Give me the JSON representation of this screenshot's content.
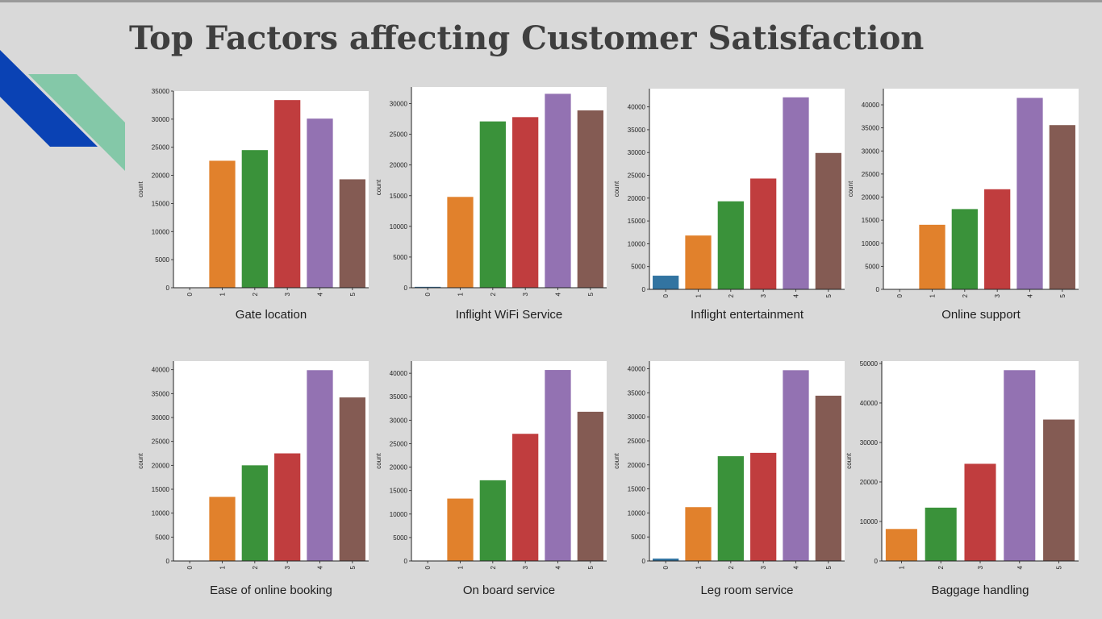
{
  "page": {
    "title": "Top Factors affecting Customer Satisfaction"
  },
  "decor": {
    "stripe_dark": "#0a42b4",
    "stripe_light": "#84c8a8"
  },
  "palette": {
    "0": "#3274a1",
    "1": "#e1812c",
    "2": "#3a923a",
    "3": "#c03d3e",
    "4": "#9372b2",
    "5": "#845b53"
  },
  "chart_data": [
    {
      "type": "bar",
      "title": "Gate location",
      "ylabel": "count",
      "categories": [
        "0",
        "1",
        "2",
        "3",
        "4",
        "5"
      ],
      "values": [
        0,
        22600,
        24500,
        33400,
        30100,
        19300
      ],
      "ylim": [
        0,
        35000
      ],
      "yticks": [
        0,
        5000,
        10000,
        15000,
        20000,
        25000,
        30000,
        35000
      ]
    },
    {
      "type": "bar",
      "title": "Inflight WiFi Service",
      "ylabel": "count",
      "categories": [
        "0",
        "1",
        "2",
        "3",
        "4",
        "5"
      ],
      "values": [
        150,
        14800,
        27100,
        27800,
        31600,
        28900
      ],
      "ylim": [
        0,
        32700
      ],
      "yticks": [
        0,
        5000,
        10000,
        15000,
        20000,
        25000,
        30000
      ]
    },
    {
      "type": "bar",
      "title": "Inflight entertainment",
      "ylabel": "count",
      "categories": [
        "0",
        "1",
        "2",
        "3",
        "4",
        "5"
      ],
      "values": [
        3000,
        11800,
        19300,
        24300,
        42100,
        29900
      ],
      "ylim": [
        0,
        44000
      ],
      "yticks": [
        0,
        5000,
        10000,
        15000,
        20000,
        25000,
        30000,
        35000,
        40000
      ]
    },
    {
      "type": "bar",
      "title": "Online support",
      "ylabel": "count",
      "categories": [
        "0",
        "1",
        "2",
        "3",
        "4",
        "5"
      ],
      "values": [
        0,
        14000,
        17400,
        21700,
        41500,
        35600
      ],
      "ylim": [
        0,
        43500
      ],
      "yticks": [
        0,
        5000,
        10000,
        15000,
        20000,
        25000,
        30000,
        35000,
        40000
      ]
    },
    {
      "type": "bar",
      "title": "Ease of online booking",
      "ylabel": "count",
      "categories": [
        "0",
        "1",
        "2",
        "3",
        "4",
        "5"
      ],
      "values": [
        0,
        13400,
        20000,
        22500,
        39900,
        34200
      ],
      "ylim": [
        0,
        41800
      ],
      "yticks": [
        0,
        5000,
        10000,
        15000,
        20000,
        25000,
        30000,
        35000,
        40000
      ]
    },
    {
      "type": "bar",
      "title": "On board service",
      "ylabel": "count",
      "categories": [
        "0",
        "1",
        "2",
        "3",
        "4",
        "5"
      ],
      "values": [
        0,
        13300,
        17200,
        27100,
        40700,
        31800
      ],
      "ylim": [
        0,
        42600
      ],
      "yticks": [
        0,
        5000,
        10000,
        15000,
        20000,
        25000,
        30000,
        35000,
        40000
      ]
    },
    {
      "type": "bar",
      "title": "Leg room service",
      "ylabel": "count",
      "categories": [
        "0",
        "1",
        "2",
        "3",
        "4",
        "5"
      ],
      "values": [
        500,
        11200,
        21800,
        22500,
        39700,
        34400
      ],
      "ylim": [
        0,
        41600
      ],
      "yticks": [
        0,
        5000,
        10000,
        15000,
        20000,
        25000,
        30000,
        35000,
        40000
      ]
    },
    {
      "type": "bar",
      "title": "Baggage handling",
      "ylabel": "count",
      "categories": [
        "1",
        "2",
        "3",
        "4",
        "5"
      ],
      "values": [
        8100,
        13500,
        24600,
        48300,
        35800
      ],
      "ylim": [
        0,
        50600
      ],
      "yticks": [
        0,
        10000,
        20000,
        30000,
        40000,
        50000
      ]
    }
  ]
}
